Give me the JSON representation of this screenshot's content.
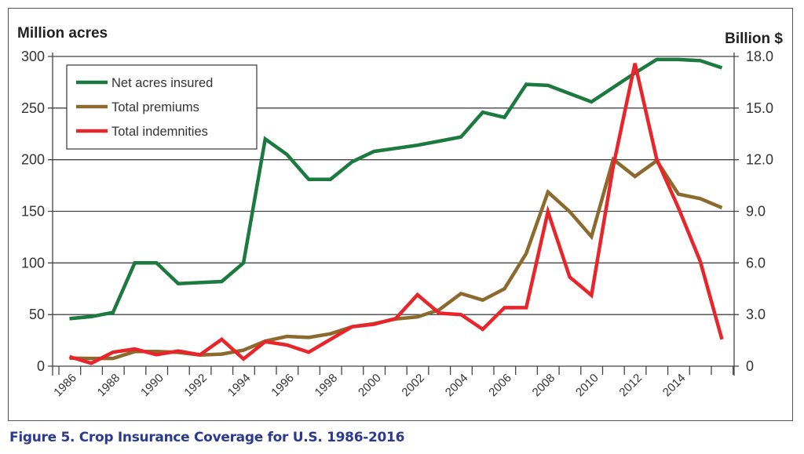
{
  "caption": "Figure 5. Crop Insurance Coverage for U.S. 1986-2016",
  "chart_data": {
    "type": "line",
    "title": "",
    "y_left_label": "Million acres",
    "y_right_label": "Billion $",
    "ylim_left": [
      0,
      300
    ],
    "ylim_right": [
      0,
      18
    ],
    "y_left_ticks": [
      "0",
      "50",
      "100",
      "150",
      "200",
      "250",
      "300"
    ],
    "y_right_ticks": [
      "0",
      "3.0",
      "6.0",
      "9.0",
      "12.0",
      "15.0",
      "18.0"
    ],
    "x_tick_labels": [
      "1986",
      "1988",
      "1990",
      "1992",
      "1994",
      "1996",
      "1998",
      "2000",
      "2002",
      "2004",
      "2006",
      "2008",
      "2010",
      "2012",
      "2014"
    ],
    "grid": true,
    "legend_position": "top-left",
    "x": [
      1986,
      1987,
      1988,
      1989,
      1990,
      1991,
      1992,
      1993,
      1994,
      1995,
      1996,
      1997,
      1998,
      1999,
      2000,
      2001,
      2002,
      2003,
      2004,
      2005,
      2006,
      2007,
      2008,
      2009,
      2010,
      2011,
      2012,
      2013,
      2014,
      2015,
      2016
    ],
    "series": [
      {
        "name": "Net acres insured",
        "axis": "left",
        "color": "#1b7a3f",
        "values": [
          46,
          48,
          52,
          100,
          100,
          80,
          81,
          82,
          100,
          220,
          205,
          181,
          181,
          198,
          208,
          211,
          214,
          218,
          222,
          246,
          241,
          273,
          272,
          264,
          256,
          270,
          284,
          297,
          297,
          296,
          289
        ]
      },
      {
        "name": "Total premiums",
        "axis": "right",
        "color": "#8c6a2e",
        "values": [
          0.47,
          0.45,
          0.45,
          0.85,
          0.85,
          0.8,
          0.65,
          0.7,
          0.93,
          1.46,
          1.73,
          1.67,
          1.88,
          2.29,
          2.47,
          2.75,
          2.86,
          3.28,
          4.22,
          3.84,
          4.5,
          6.55,
          10.12,
          8.98,
          7.53,
          12.02,
          11.03,
          11.94,
          10.0,
          9.74,
          9.21
        ]
      },
      {
        "name": "Total indemnities",
        "axis": "right",
        "color": "#e8252b",
        "values": [
          0.55,
          0.17,
          0.81,
          1.0,
          0.67,
          0.88,
          0.66,
          1.56,
          0.42,
          1.42,
          1.23,
          0.81,
          1.56,
          2.29,
          2.44,
          2.77,
          4.15,
          3.08,
          3.0,
          2.14,
          3.4,
          3.4,
          8.98,
          5.18,
          4.12,
          11.6,
          17.6,
          12.03,
          9.2,
          6.1,
          1.56
        ]
      }
    ]
  }
}
